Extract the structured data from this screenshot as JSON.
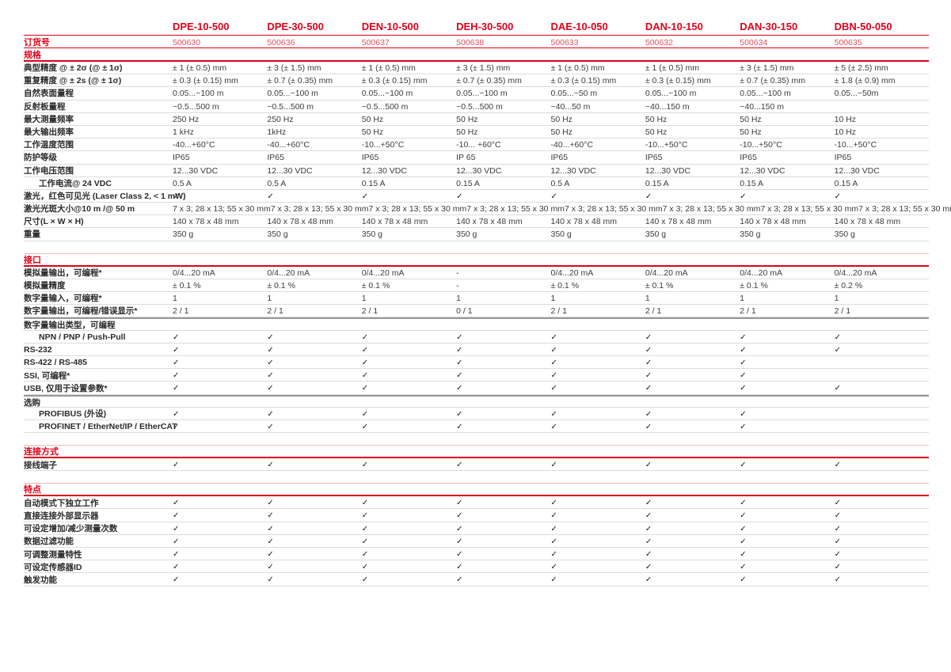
{
  "colors": {
    "accent_red": "#e2001a",
    "order_red": "#e35061",
    "row_line_gray": "#dcdcdc",
    "divider_gray": "#979797",
    "text": "#3c3c3c"
  },
  "check_icon_glyph": "✓",
  "products": [
    "DPE-10-500",
    "DPE-30-500",
    "DEN-10-500",
    "DEH-30-500",
    "DAE-10-050",
    "DAN-10-150",
    "DAN-30-150",
    "DBN-50-050"
  ],
  "order_row": {
    "label": "订货号",
    "values": [
      "500630",
      "500636",
      "500637",
      "500638",
      "500633",
      "500632",
      "500634",
      "500635"
    ]
  },
  "sections": [
    {
      "title": "规格",
      "gapped": false,
      "rows": [
        {
          "label": "典型精度 @ ± 2σ (@ ± 1σ)",
          "values": [
            "± 1 (± 0.5) mm",
            "± 3 (± 1.5) mm",
            "± 1 (± 0.5) mm",
            "± 3 (± 1.5) mm",
            "± 1 (± 0.5) mm",
            "± 1 (± 0.5) mm",
            "± 3 (± 1.5) mm",
            "± 5 (± 2.5) mm"
          ]
        },
        {
          "label": "重复精度 @ ± 2s (@ ± 1σ)",
          "values": [
            "± 0.3 (± 0.15) mm",
            "± 0.7 (± 0.35) mm",
            "± 0.3 (± 0.15) mm",
            "± 0.7 (± 0.35) mm",
            "± 0.3 (± 0.15) mm",
            "± 0.3 (± 0.15) mm",
            "± 0.7 (± 0.35) mm",
            "± 1.8 (± 0.9) mm"
          ]
        },
        {
          "label": "自然表面量程",
          "values": [
            "0.05...~100 m",
            "0.05...~100 m",
            "0.05...~100 m",
            "0.05...~100 m",
            "0.05...~50 m",
            "0.05...~100 m",
            "0.05...~100 m",
            "0.05...~50m"
          ]
        },
        {
          "label": "反射板量程",
          "values": [
            "~0.5...500 m",
            "~0.5...500 m",
            "~0.5...500 m",
            "~0.5...500 m",
            "~40...50 m",
            "~40...150 m",
            "~40...150 m",
            ""
          ]
        },
        {
          "label": "最大测量频率",
          "values": [
            "250 Hz",
            "250 Hz",
            "50 Hz",
            "50 Hz",
            "50 Hz",
            "50 Hz",
            "50 Hz",
            "10 Hz"
          ]
        },
        {
          "label": "最大输出频率",
          "values": [
            "1 kHz",
            "1kHz",
            "50 Hz",
            "50 Hz",
            "50 Hz",
            "50 Hz",
            "50 Hz",
            "10 Hz"
          ]
        },
        {
          "label": "工作温度范围",
          "values": [
            "-40...+60°C",
            "-40...+60°C",
            "-10...+50°C",
            "-10... +60°C",
            "-40...+60°C",
            "-10...+50°C",
            "-10...+50°C",
            "-10...+50°C"
          ]
        },
        {
          "label": "防护等级",
          "values": [
            "IP65",
            "IP65",
            "IP65",
            "IP 65",
            "IP65",
            "IP65",
            "IP65",
            "IP65"
          ]
        },
        {
          "label": "工作电压范围",
          "values": [
            "12...30 VDC",
            "12...30 VDC",
            "12...30 VDC",
            "12...30 VDC",
            "12...30 VDC",
            "12...30 VDC",
            "12...30 VDC",
            "12...30 VDC"
          ]
        },
        {
          "label": "工作电流@ 24 VDC",
          "indent": true,
          "values": [
            "0.5 A",
            "0.5 A",
            "0.15 A",
            "0.15 A",
            "0.5 A",
            "0.15 A",
            "0.15 A",
            "0.15 A"
          ]
        },
        {
          "label": "激光，红色可见光 (Laser Class 2, < 1 mW)",
          "values": [
            "✓",
            "✓",
            "✓",
            "✓",
            "✓",
            "✓",
            "✓",
            "✓"
          ]
        },
        {
          "label": "激光光斑大小@10 m /@ 50 m",
          "values": [
            "7 x 3; 28 x 13; 55 x 30 mm",
            "7 x 3; 28 x 13; 55 x 30 mm",
            "7 x 3; 28 x 13; 55 x 30 mm",
            "7 x 3; 28 x 13; 55 x 30 mm",
            "7 x 3; 28 x 13; 55 x 30 mm",
            "7 x 3; 28 x 13; 55 x 30 mm",
            "7 x 3; 28 x 13; 55 x 30 mm",
            "7 x 3; 28 x 13; 55 x 30 mm"
          ]
        },
        {
          "label": "尺寸(L × W × H)",
          "values": [
            "140 x 78 x 48 mm",
            "140 x 78 x 48 mm",
            "140 x 78 x 48 mm",
            "140 x 78 x 48 mm",
            "140 x 78 x 48 mm",
            "140 x 78 x 48 mm",
            "140 x 78 x 48 mm",
            "140 x 78 x 48 mm"
          ]
        },
        {
          "label": "重量",
          "values": [
            "350 g",
            "350 g",
            "350 g",
            "350 g",
            "350 g",
            "350 g",
            "350 g",
            "350 g"
          ]
        }
      ]
    },
    {
      "title": "接口",
      "gapped": true,
      "rows": [
        {
          "label": "模拟量输出，可编程*",
          "values": [
            "0/4...20 mA",
            "0/4...20 mA",
            "0/4...20 mA",
            "-",
            "0/4...20 mA",
            "0/4...20 mA",
            "0/4...20 mA",
            "0/4...20 mA"
          ]
        },
        {
          "label": "模拟量精度",
          "values": [
            "± 0.1 %",
            "± 0.1 %",
            "± 0.1 %",
            "-",
            "± 0.1 %",
            "± 0.1 %",
            "± 0.1 %",
            "± 0.2 %"
          ]
        },
        {
          "label": "数字量输入，可编程*",
          "values": [
            "1",
            "1",
            "1",
            "1",
            "1",
            "1",
            "1",
            "1"
          ]
        },
        {
          "label": "数字量输出，可编程/错误显示*",
          "values": [
            "2 / 1",
            "2 / 1",
            "2 / 1",
            "0 / 1",
            "2 / 1",
            "2 / 1",
            "2 / 1",
            "2 / 1"
          ]
        },
        {
          "label": "数字量输出类型，可编程",
          "divider": true,
          "values": [
            "",
            "",
            "",
            "",
            "",
            "",
            "",
            ""
          ]
        },
        {
          "label": "NPN / PNP / Push-Pull",
          "indent": true,
          "values": [
            "✓",
            "✓",
            "✓",
            "✓",
            "✓",
            "✓",
            "✓",
            "✓"
          ]
        },
        {
          "label": "RS-232",
          "values": [
            "✓",
            "✓",
            "✓",
            "✓",
            "✓",
            "✓",
            "✓",
            "✓"
          ]
        },
        {
          "label": "RS-422 / RS-485",
          "values": [
            "✓",
            "✓",
            "✓",
            "✓",
            "✓",
            "✓",
            "✓",
            ""
          ]
        },
        {
          "label": "SSI, 可编程*",
          "values": [
            "✓",
            "✓",
            "✓",
            "✓",
            "✓",
            "✓",
            "✓",
            ""
          ]
        },
        {
          "label": "USB, 仅用于设置参数*",
          "values": [
            "✓",
            "✓",
            "✓",
            "✓",
            "✓",
            "✓",
            "✓",
            "✓"
          ]
        },
        {
          "label": "选购",
          "divider": true,
          "values": [
            "",
            "",
            "",
            "",
            "",
            "",
            "",
            ""
          ]
        },
        {
          "label": "PROFIBUS (外设)",
          "indent": true,
          "values": [
            "✓",
            "✓",
            "✓",
            "✓",
            "✓",
            "✓",
            "✓",
            ""
          ]
        },
        {
          "label": "PROFINET / EtherNet/IP / EtherCAT",
          "indent": true,
          "values": [
            "✓",
            "✓",
            "✓",
            "✓",
            "✓",
            "✓",
            "✓",
            ""
          ]
        }
      ]
    },
    {
      "title": "连接方式",
      "gapped": true,
      "rows": [
        {
          "label": "接线端子",
          "values": [
            "✓",
            "✓",
            "✓",
            "✓",
            "✓",
            "✓",
            "✓",
            "✓"
          ]
        }
      ]
    },
    {
      "title": "特点",
      "gapped": true,
      "rows": [
        {
          "label": "自动模式下独立工作",
          "values": [
            "✓",
            "✓",
            "✓",
            "✓",
            "✓",
            "✓",
            "✓",
            "✓"
          ]
        },
        {
          "label": "直接连接外部显示器",
          "values": [
            "✓",
            "✓",
            "✓",
            "✓",
            "✓",
            "✓",
            "✓",
            "✓"
          ]
        },
        {
          "label": "可设定增加/减少测量次数",
          "values": [
            "✓",
            "✓",
            "✓",
            "✓",
            "✓",
            "✓",
            "✓",
            "✓"
          ]
        },
        {
          "label": "数据过滤功能",
          "values": [
            "✓",
            "✓",
            "✓",
            "✓",
            "✓",
            "✓",
            "✓",
            "✓"
          ]
        },
        {
          "label": "可调整测量特性",
          "values": [
            "✓",
            "✓",
            "✓",
            "✓",
            "✓",
            "✓",
            "✓",
            "✓"
          ]
        },
        {
          "label": "可设定传感器ID",
          "values": [
            "✓",
            "✓",
            "✓",
            "✓",
            "✓",
            "✓",
            "✓",
            "✓"
          ]
        },
        {
          "label": "触发功能",
          "values": [
            "✓",
            "✓",
            "✓",
            "✓",
            "✓",
            "✓",
            "✓",
            "✓"
          ]
        }
      ]
    }
  ]
}
